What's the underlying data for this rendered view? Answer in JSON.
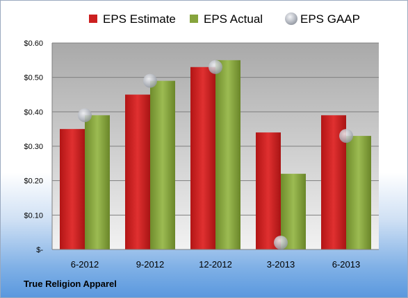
{
  "chart_data": {
    "type": "bar",
    "categories": [
      "6-2012",
      "9-2012",
      "12-2012",
      "3-2013",
      "6-2013"
    ],
    "series": [
      {
        "name": "EPS Estimate",
        "type": "bar",
        "color": "#cc1f1f",
        "values": [
          0.35,
          0.45,
          0.53,
          0.34,
          0.39
        ]
      },
      {
        "name": "EPS Actual",
        "type": "bar",
        "color": "#86a43c",
        "values": [
          0.39,
          0.49,
          0.55,
          0.22,
          0.33
        ]
      },
      {
        "name": "EPS GAAP",
        "type": "scatter",
        "color": "#b0b4bc",
        "values": [
          0.39,
          0.49,
          0.53,
          0.02,
          0.33
        ]
      }
    ],
    "ylim": [
      0,
      0.6
    ],
    "yticks": [
      0,
      0.1,
      0.2,
      0.3,
      0.4,
      0.5,
      0.6
    ],
    "ytick_labels": [
      "$-",
      "$0.10",
      "$0.20",
      "$0.30",
      "$0.40",
      "$0.50",
      "$0.60"
    ],
    "grid": true,
    "legend_position": "top"
  },
  "source_label": "True Religion Apparel"
}
